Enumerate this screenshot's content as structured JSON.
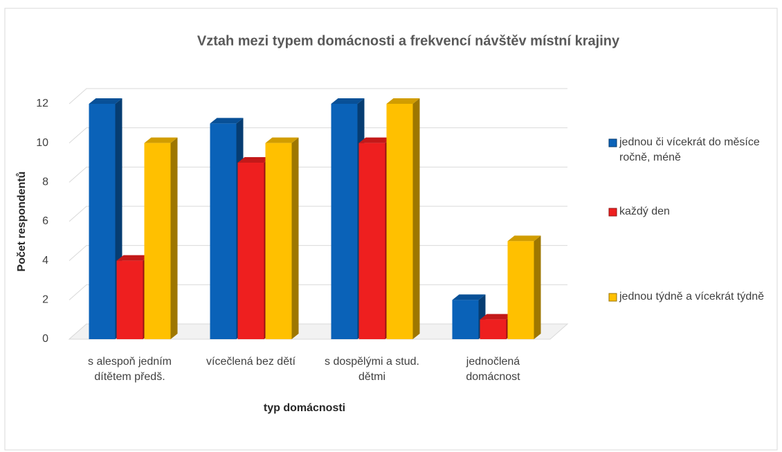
{
  "chart_data": {
    "type": "bar3d",
    "title": "Vztah mezi typem domácnosti a frekvencí návštěv místní krajiny",
    "x_label": "typ domácnosti",
    "y_label": "Počet respondentů",
    "categories": [
      "s alespoň jedním dítětem předš.",
      "vícečlená bez dětí",
      "s dospělými a stud. dětmi",
      "jednočlená domácnost"
    ],
    "series": [
      {
        "name": "jednou či vícekrát do měsíce ročně, méně",
        "color": "#0a62b8",
        "values": [
          12,
          11,
          12,
          2
        ]
      },
      {
        "name": "každý den",
        "color": "#ee1f1f",
        "values": [
          4,
          9,
          10,
          1
        ]
      },
      {
        "name": "jednou týdně a vícekrát týdně",
        "color": "#ffc000",
        "values": [
          10,
          10,
          12,
          5
        ]
      }
    ],
    "ylim": [
      0,
      12
    ],
    "yticks": [
      0,
      2,
      4,
      6,
      8,
      10,
      12
    ],
    "grid": true,
    "legend": "right"
  }
}
